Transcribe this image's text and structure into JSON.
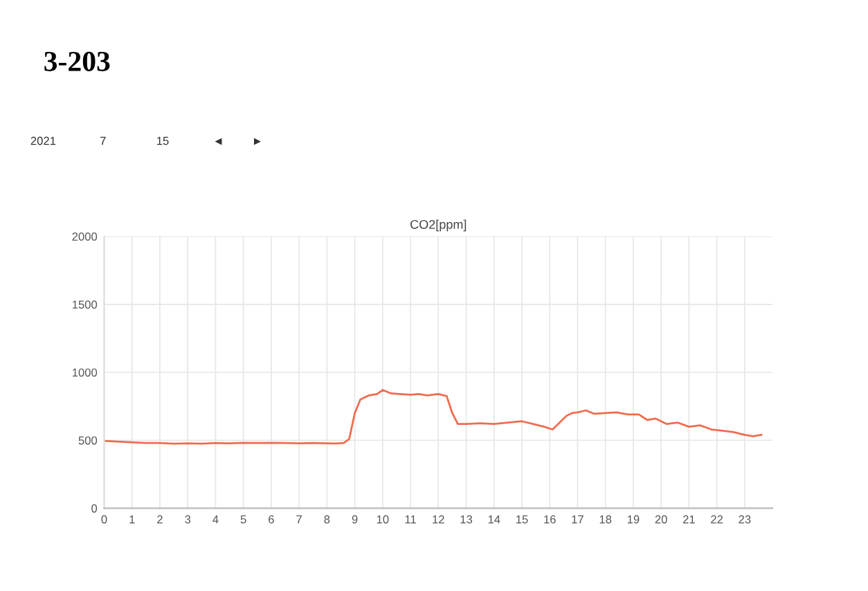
{
  "chart_data": {
    "type": "line",
    "title": "3-203",
    "subtitle": "CO2[ppm]",
    "annotations": [
      "2021",
      "7",
      "15",
      "◄",
      "►"
    ],
    "x": [
      0,
      0.5,
      1,
      1.5,
      2,
      2.5,
      3,
      3.5,
      4,
      4.5,
      5,
      5.5,
      6,
      6.5,
      7,
      7.5,
      8,
      8.3,
      8.6,
      8.8,
      9.0,
      9.2,
      9.5,
      9.8,
      10,
      10.3,
      10.6,
      11,
      11.3,
      11.6,
      12,
      12.3,
      12.5,
      12.7,
      13,
      13.5,
      14,
      14.5,
      15,
      15.5,
      15.8,
      16.1,
      16.3,
      16.6,
      16.8,
      17,
      17.3,
      17.6,
      18,
      18.4,
      18.8,
      19.2,
      19.5,
      19.8,
      20.2,
      20.6,
      21,
      21.4,
      21.8,
      22.2,
      22.6,
      23,
      23.3,
      23.6
    ],
    "series": [
      {
        "color": "#ef6c4f",
        "values": [
          495,
          490,
          485,
          480,
          480,
          475,
          478,
          475,
          480,
          478,
          482,
          480,
          482,
          480,
          478,
          480,
          478,
          476,
          480,
          510,
          700,
          800,
          830,
          840,
          870,
          845,
          840,
          835,
          840,
          830,
          840,
          825,
          700,
          620,
          620,
          625,
          620,
          630,
          640,
          615,
          600,
          580,
          620,
          680,
          700,
          705,
          720,
          695,
          700,
          705,
          690,
          690,
          650,
          660,
          620,
          630,
          600,
          610,
          580,
          570,
          560,
          540,
          530,
          540
        ]
      }
    ],
    "xlim": [
      0,
      24
    ],
    "xticks": [
      0,
      1,
      2,
      3,
      4,
      5,
      6,
      7,
      8,
      9,
      10,
      11,
      12,
      13,
      14,
      15,
      16,
      17,
      18,
      19,
      20,
      21,
      22,
      23
    ],
    "ylim": [
      0,
      2000
    ],
    "yticks": [
      0,
      500,
      1000,
      1500,
      2000
    ],
    "grid": true,
    "legend": false,
    "marker": "none",
    "line_style": "solid"
  }
}
